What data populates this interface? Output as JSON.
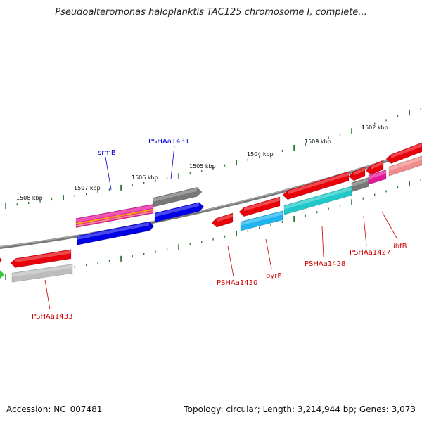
{
  "title": "Pseudoalteromonas haloplanktis TAC125 chromosome I, complete...",
  "footer": {
    "accession": "Accession: NC_007481",
    "topology": "Topology: circular; Length: 3,214,944 bp; Genes: 3,073"
  },
  "ruler_ticks": [
    "1508 kbp",
    "1507 kbp",
    "1506 kbp",
    "1505 kbp",
    "1504 kbp",
    "1503 kbp",
    "1502 kbp"
  ],
  "gene_labels": [
    "srmB",
    "PSHAa1431",
    "PSHAa1433",
    "PSHAa1430",
    "pyrF",
    "PSHAa1428",
    "PSHAa1427",
    "ihfB"
  ],
  "colors": {
    "backbone": "#777777",
    "ruler_ticks": "#2e7d32",
    "gene_red": "#e8000b",
    "gene_blue": "#0000e6",
    "gene_grey": "#777777",
    "gene_light_grey": "#bdbdbd",
    "gene_cyan": "#1fc9c9",
    "gene_sky": "#1eb4f0",
    "gene_magenta": "#e5169b",
    "gene_pink": "#f08c8c",
    "gene_green": "#33cc33",
    "label_red": "#cc0000",
    "label_blue": "#0000cc"
  }
}
